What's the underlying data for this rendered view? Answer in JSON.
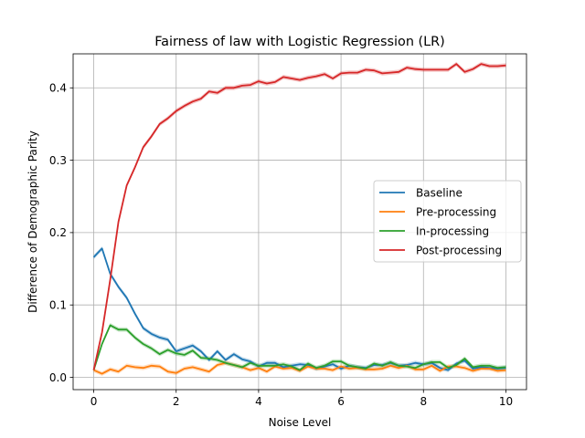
{
  "chart_data": {
    "type": "line",
    "title": "Fairness of law with Logistic Regression (LR)",
    "xlabel": "Noise Level",
    "ylabel": "Difference of Demographic Parity",
    "xlim": [
      -0.5,
      10.5
    ],
    "ylim": [
      -0.017,
      0.447
    ],
    "xticks": [
      0,
      2,
      4,
      6,
      8,
      10
    ],
    "yticks": [
      0.0,
      0.1,
      0.2,
      0.3,
      0.4
    ],
    "ytick_labels": [
      "0.0",
      "0.1",
      "0.2",
      "0.3",
      "0.4"
    ],
    "grid": true,
    "legend_position": "center-right",
    "x": [
      0.0,
      0.2,
      0.4,
      0.6,
      0.8,
      1.0,
      1.2,
      1.4,
      1.6,
      1.8,
      2.0,
      2.2,
      2.4,
      2.6,
      2.8,
      3.0,
      3.2,
      3.4,
      3.6,
      3.8,
      4.0,
      4.2,
      4.4,
      4.6,
      4.8,
      5.0,
      5.2,
      5.4,
      5.6,
      5.8,
      6.0,
      6.2,
      6.4,
      6.6,
      6.8,
      7.0,
      7.2,
      7.4,
      7.6,
      7.8,
      8.0,
      8.2,
      8.4,
      8.6,
      8.8,
      9.0,
      9.2,
      9.4,
      9.6,
      9.8,
      10.0
    ],
    "series": [
      {
        "name": "Baseline",
        "color": "#1f77b4",
        "values": [
          0.166,
          0.178,
          0.143,
          0.125,
          0.11,
          0.088,
          0.068,
          0.06,
          0.055,
          0.052,
          0.036,
          0.04,
          0.044,
          0.036,
          0.024,
          0.036,
          0.024,
          0.032,
          0.025,
          0.022,
          0.015,
          0.02,
          0.02,
          0.014,
          0.016,
          0.018,
          0.017,
          0.012,
          0.015,
          0.018,
          0.012,
          0.016,
          0.014,
          0.013,
          0.017,
          0.017,
          0.02,
          0.016,
          0.017,
          0.02,
          0.018,
          0.02,
          0.013,
          0.01,
          0.019,
          0.023,
          0.012,
          0.014,
          0.013,
          0.012,
          0.013
        ]
      },
      {
        "name": "Pre-processing",
        "color": "#ff7f0e",
        "values": [
          0.01,
          0.005,
          0.011,
          0.008,
          0.016,
          0.014,
          0.013,
          0.016,
          0.015,
          0.008,
          0.006,
          0.012,
          0.014,
          0.011,
          0.008,
          0.017,
          0.02,
          0.017,
          0.014,
          0.01,
          0.013,
          0.008,
          0.015,
          0.012,
          0.013,
          0.009,
          0.015,
          0.012,
          0.012,
          0.01,
          0.015,
          0.012,
          0.013,
          0.011,
          0.011,
          0.012,
          0.016,
          0.013,
          0.016,
          0.011,
          0.011,
          0.016,
          0.009,
          0.015,
          0.015,
          0.013,
          0.009,
          0.012,
          0.012,
          0.009,
          0.01
        ]
      },
      {
        "name": "In-processing",
        "color": "#2ca02c",
        "values": [
          0.01,
          0.046,
          0.072,
          0.066,
          0.066,
          0.055,
          0.046,
          0.04,
          0.032,
          0.038,
          0.033,
          0.031,
          0.037,
          0.027,
          0.026,
          0.024,
          0.02,
          0.017,
          0.014,
          0.02,
          0.016,
          0.016,
          0.016,
          0.018,
          0.015,
          0.01,
          0.019,
          0.013,
          0.016,
          0.022,
          0.022,
          0.016,
          0.014,
          0.012,
          0.019,
          0.016,
          0.021,
          0.016,
          0.015,
          0.013,
          0.018,
          0.021,
          0.021,
          0.013,
          0.017,
          0.026,
          0.014,
          0.016,
          0.016,
          0.013,
          0.014
        ]
      },
      {
        "name": "Post-processing",
        "color": "#d62728",
        "values": [
          0.01,
          0.062,
          0.135,
          0.215,
          0.265,
          0.29,
          0.318,
          0.333,
          0.35,
          0.358,
          0.368,
          0.375,
          0.381,
          0.385,
          0.395,
          0.393,
          0.4,
          0.4,
          0.403,
          0.404,
          0.409,
          0.406,
          0.408,
          0.415,
          0.413,
          0.411,
          0.414,
          0.416,
          0.419,
          0.413,
          0.42,
          0.421,
          0.421,
          0.425,
          0.424,
          0.42,
          0.421,
          0.422,
          0.428,
          0.426,
          0.425,
          0.425,
          0.425,
          0.425,
          0.433,
          0.422,
          0.426,
          0.433,
          0.43,
          0.43,
          0.431
        ]
      }
    ]
  }
}
